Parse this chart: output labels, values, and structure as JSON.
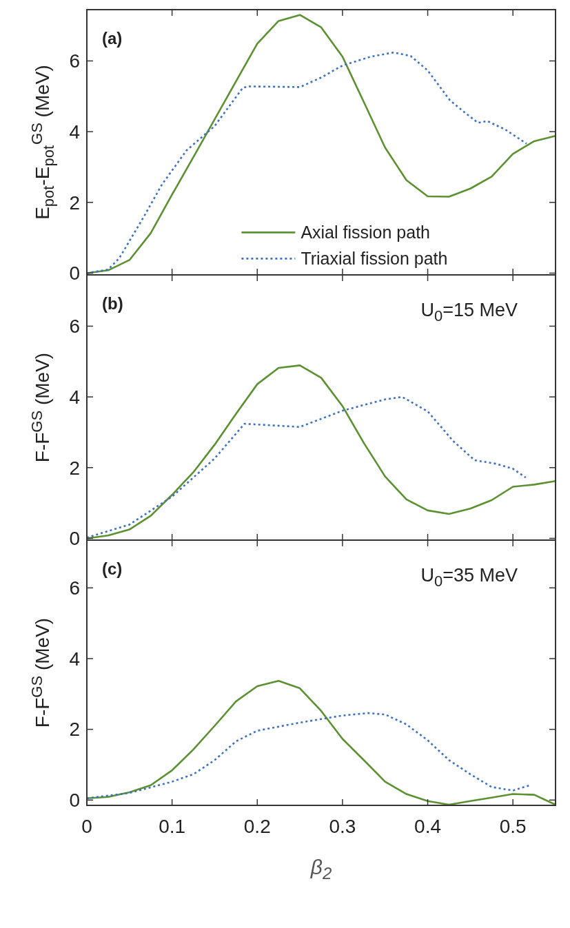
{
  "chart_data": [
    {
      "type": "line",
      "ylabel": "E$_{pot}$-E$_{pot}$$^{GS}$ (MeV)",
      "xlim": [
        0,
        0.55
      ],
      "xticks": [
        0,
        0.1,
        0.2,
        0.3,
        0.4,
        0.5
      ],
      "ylim": [
        -0.05,
        7.45
      ],
      "yticks": [
        0,
        2,
        4,
        6
      ],
      "tick_labels": "y",
      "legend": "bottom",
      "annotations": [
        "(a)"
      ],
      "series": [
        {
          "name": "Axial fission path",
          "color": "#5b9130",
          "line_style": "solid",
          "x": [
            0,
            0.025,
            0.05,
            0.075,
            0.1,
            0.125,
            0.15,
            0.175,
            0.2,
            0.225,
            0.25,
            0.275,
            0.3,
            0.325,
            0.35,
            0.375,
            0.4,
            0.425,
            0.45,
            0.475,
            0.5,
            0.525,
            0.55
          ],
          "values": [
            0,
            0.08,
            0.37,
            1.13,
            2.22,
            3.28,
            4.35,
            5.42,
            6.49,
            7.13,
            7.3,
            6.95,
            6.12,
            4.84,
            3.55,
            2.63,
            2.17,
            2.16,
            2.39,
            2.73,
            3.37,
            3.73,
            3.88
          ]
        },
        {
          "name": "Triaxial fission path",
          "color": "#3b70c4",
          "line_style": "dotted",
          "x": [
            0,
            0.025,
            0.038,
            0.067,
            0.088,
            0.117,
            0.15,
            0.183,
            0.19,
            0.25,
            0.275,
            0.3,
            0.333,
            0.36,
            0.38,
            0.4,
            0.426,
            0.443,
            0.459,
            0.47,
            0.491,
            0.516
          ],
          "values": [
            0,
            0.1,
            0.42,
            1.6,
            2.5,
            3.47,
            4.16,
            5.24,
            5.28,
            5.26,
            5.53,
            5.87,
            6.12,
            6.24,
            6.14,
            5.73,
            4.89,
            4.55,
            4.25,
            4.3,
            4.06,
            3.66
          ]
        }
      ]
    },
    {
      "type": "line",
      "ylabel": "F-F$^{GS}$ (MeV)",
      "xlim": [
        0,
        0.55
      ],
      "xticks": [
        0,
        0.1,
        0.2,
        0.3,
        0.4,
        0.5
      ],
      "ylim": [
        -0.05,
        7.45
      ],
      "yticks": [
        0,
        2,
        4,
        6
      ],
      "tick_labels": "y",
      "annotations": [
        "(b)",
        "U$_{0}$=15 MeV"
      ],
      "series": [
        {
          "color": "#5b9130",
          "line_style": "solid",
          "x": [
            0,
            0.025,
            0.05,
            0.075,
            0.1,
            0.125,
            0.15,
            0.175,
            0.2,
            0.225,
            0.25,
            0.275,
            0.3,
            0.325,
            0.35,
            0.375,
            0.4,
            0.425,
            0.45,
            0.475,
            0.5,
            0.525,
            0.55
          ],
          "values": [
            0,
            0.08,
            0.25,
            0.64,
            1.23,
            1.87,
            2.65,
            3.52,
            4.36,
            4.82,
            4.89,
            4.54,
            3.74,
            2.7,
            1.75,
            1.1,
            0.79,
            0.69,
            0.84,
            1.08,
            1.46,
            1.52,
            1.62
          ]
        },
        {
          "color": "#3b70c4",
          "line_style": "dotted",
          "x": [
            0,
            0.05,
            0.1,
            0.15,
            0.185,
            0.25,
            0.3,
            0.35,
            0.37,
            0.4,
            0.43,
            0.455,
            0.48,
            0.5,
            0.515
          ],
          "values": [
            0.02,
            0.39,
            1.18,
            2.26,
            3.24,
            3.15,
            3.61,
            3.93,
            4.0,
            3.59,
            2.75,
            2.21,
            2.11,
            1.97,
            1.72
          ]
        }
      ]
    },
    {
      "type": "line",
      "xlabel": "β$_{2}$",
      "ylabel": "F-F$^{GS}$ (MeV)",
      "xlim": [
        0,
        0.55
      ],
      "xticks": [
        0,
        0.1,
        0.2,
        0.3,
        0.4,
        0.5
      ],
      "ylim": [
        -0.15,
        7.35
      ],
      "yticks": [
        0,
        2,
        4,
        6
      ],
      "annotations": [
        "(c)",
        "U$_{0}$=35 MeV"
      ],
      "series": [
        {
          "color": "#5b9130",
          "line_style": "solid",
          "x": [
            0,
            0.025,
            0.05,
            0.075,
            0.1,
            0.125,
            0.15,
            0.175,
            0.2,
            0.225,
            0.25,
            0.275,
            0.3,
            0.325,
            0.35,
            0.375,
            0.4,
            0.425,
            0.45,
            0.475,
            0.5,
            0.525,
            0.55
          ],
          "values": [
            0.05,
            0.09,
            0.22,
            0.42,
            0.84,
            1.43,
            2.1,
            2.79,
            3.22,
            3.37,
            3.16,
            2.52,
            1.73,
            1.13,
            0.52,
            0.17,
            -0.03,
            -0.13,
            -0.03,
            0.07,
            0.17,
            0.15,
            -0.13
          ]
        },
        {
          "color": "#3b70c4",
          "line_style": "dotted",
          "x": [
            0,
            0.05,
            0.1,
            0.125,
            0.15,
            0.175,
            0.2,
            0.25,
            0.3,
            0.33,
            0.35,
            0.375,
            0.4,
            0.425,
            0.45,
            0.475,
            0.5,
            0.52
          ],
          "values": [
            0.05,
            0.2,
            0.52,
            0.73,
            1.13,
            1.66,
            1.96,
            2.19,
            2.39,
            2.46,
            2.42,
            2.14,
            1.69,
            1.13,
            0.73,
            0.37,
            0.27,
            0.42
          ]
        }
      ]
    }
  ]
}
